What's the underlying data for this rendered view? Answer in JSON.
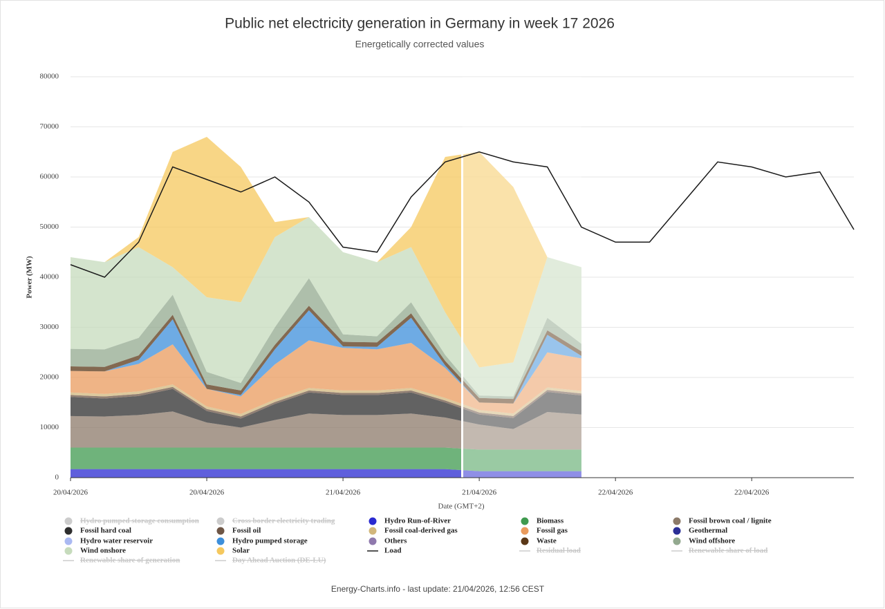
{
  "chart_data": {
    "type": "area",
    "stacked": true,
    "title": "Public net electricity generation in Germany in week 17 2026",
    "subtitle": "Energetically corrected values",
    "x_label": "Date (GMT+2)",
    "y_label": "Power (MW)",
    "footer": "Energy-Charts.info - last update: 21/04/2026, 12:56 CEST",
    "grid": true,
    "forecast_from": 34.5,
    "xlim": [
      0,
      69
    ],
    "xticks": [
      {
        "value": 0,
        "label": "20/04/2026"
      },
      {
        "value": 12,
        "label": "20/04/2026"
      },
      {
        "value": 24,
        "label": "21/04/2026"
      },
      {
        "value": 36,
        "label": "21/04/2026"
      },
      {
        "value": 48,
        "label": "22/04/2026"
      },
      {
        "value": 60,
        "label": "22/04/2026"
      }
    ],
    "ylim": [
      0,
      80000
    ],
    "yticks": [
      0,
      10000,
      20000,
      30000,
      40000,
      50000,
      60000,
      70000,
      80000
    ],
    "x": [
      0,
      3,
      6,
      9,
      12,
      15,
      18,
      21,
      24,
      27,
      30,
      33,
      36,
      39,
      42,
      45,
      48,
      51,
      54,
      57,
      60,
      63,
      66,
      69
    ],
    "series": [
      {
        "name": "Hydro pumped storage consumption",
        "color": "#bdbdbd",
        "visible": false
      },
      {
        "name": "Cross border electricity trading",
        "color": "#cfcfcf",
        "visible": false
      },
      {
        "name": "Hydro Run-of-River",
        "color": "#2a2ad0",
        "values": [
          1700,
          1700,
          1700,
          1700,
          1700,
          1700,
          1700,
          1700,
          1700,
          1700,
          1700,
          1700,
          1300,
          1300,
          1300,
          1300,
          null,
          null,
          null,
          null,
          null,
          null,
          null,
          null
        ]
      },
      {
        "name": "Biomass",
        "color": "#3f9a4f",
        "values": [
          4300,
          4300,
          4300,
          4300,
          4300,
          4300,
          4300,
          4300,
          4300,
          4300,
          4300,
          4300,
          4300,
          4300,
          4300,
          4300,
          null,
          null,
          null,
          null,
          null,
          null,
          null,
          null
        ]
      },
      {
        "name": "Fossil brown coal / lignite",
        "color": "#8c7a69",
        "values": [
          6300,
          6200,
          6500,
          7200,
          5000,
          4000,
          5500,
          6800,
          6500,
          6500,
          6800,
          6000,
          5000,
          4100,
          7500,
          7000,
          null,
          null,
          null,
          null,
          null,
          null,
          null,
          null
        ]
      },
      {
        "name": "Fossil hard coal",
        "color": "#2e2e2e",
        "values": [
          3800,
          3600,
          3800,
          4500,
          2300,
          1800,
          3200,
          4200,
          4000,
          4000,
          4200,
          3000,
          2000,
          2200,
          4000,
          3800,
          null,
          null,
          null,
          null,
          null,
          null,
          null,
          null
        ]
      },
      {
        "name": "Fossil oil",
        "color": "#6e5646",
        "values": [
          400,
          400,
          400,
          400,
          400,
          400,
          400,
          400,
          400,
          400,
          400,
          400,
          400,
          400,
          400,
          400,
          null,
          null,
          null,
          null,
          null,
          null,
          null,
          null
        ]
      },
      {
        "name": "Fossil coal-derived gas",
        "color": "#d2b77c",
        "values": [
          500,
          500,
          500,
          500,
          500,
          500,
          500,
          500,
          500,
          500,
          500,
          500,
          500,
          500,
          500,
          500,
          null,
          null,
          null,
          null,
          null,
          null,
          null,
          null
        ]
      },
      {
        "name": "Fossil gas",
        "color": "#ea9b5d",
        "values": [
          4300,
          4500,
          5500,
          8000,
          3500,
          3500,
          7000,
          9500,
          8500,
          8200,
          9000,
          6000,
          1500,
          2000,
          7000,
          6500,
          null,
          null,
          null,
          null,
          null,
          null,
          null,
          null
        ]
      },
      {
        "name": "Geothermal",
        "color": "#2b2f96"
      },
      {
        "name": "Hydro water reservoir",
        "color": "#aab9f2"
      },
      {
        "name": "Hydro pumped storage",
        "color": "#3d8fdb",
        "values": [
          0,
          0,
          800,
          5000,
          0,
          300,
          3000,
          6000,
          300,
          500,
          5000,
          500,
          0,
          0,
          3500,
          500,
          null,
          null,
          null,
          null,
          null,
          null,
          null,
          null
        ]
      },
      {
        "name": "Others",
        "color": "#8f79ad"
      },
      {
        "name": "Waste",
        "color": "#5a3717",
        "values": [
          900,
          900,
          900,
          900,
          900,
          900,
          900,
          900,
          900,
          900,
          900,
          900,
          900,
          900,
          900,
          900,
          null,
          null,
          null,
          null,
          null,
          null,
          null,
          null
        ]
      },
      {
        "name": "Wind offshore",
        "color": "#93a98f",
        "values": [
          3500,
          3500,
          3500,
          4000,
          2500,
          1500,
          3500,
          5500,
          1500,
          1200,
          2200,
          1200,
          500,
          500,
          2500,
          1500,
          null,
          null,
          null,
          null,
          null,
          null,
          null,
          null
        ]
      },
      {
        "name": "Wind onshore",
        "color": "#c6dbbc",
        "values": [
          18300,
          17400,
          18100,
          5500,
          14900,
          16100,
          18000,
          12200,
          16400,
          14800,
          11000,
          8500,
          5600,
          6800,
          12100,
          15300,
          null,
          null,
          null,
          null,
          null,
          null,
          null,
          null
        ]
      },
      {
        "name": "Solar",
        "color": "#f5c85e",
        "values": [
          0,
          0,
          2000,
          23000,
          32000,
          27000,
          3000,
          0,
          0,
          0,
          4000,
          31000,
          43000,
          35000,
          0,
          0,
          null,
          null,
          null,
          null,
          null,
          null,
          null,
          null
        ]
      },
      {
        "name": "Load",
        "type": "line",
        "color": "#1a1a1a",
        "values": [
          42500,
          40000,
          47000,
          62000,
          59500,
          57000,
          60000,
          55000,
          46000,
          45000,
          56000,
          63000,
          65000,
          63000,
          62000,
          50000,
          47000,
          47000,
          55000,
          63000,
          62000,
          60000,
          61000,
          49500
        ]
      },
      {
        "name": "Residual load",
        "type": "line",
        "color": "#cccccc",
        "visible": false
      },
      {
        "name": "Renewable share of load",
        "type": "line",
        "color": "#cccccc",
        "visible": false
      },
      {
        "name": "Renewable share of generation",
        "type": "line",
        "color": "#cccccc",
        "visible": false
      },
      {
        "name": "Day Ahead Auction (DE-LU)",
        "type": "line",
        "color": "#cccccc",
        "visible": false
      }
    ]
  }
}
